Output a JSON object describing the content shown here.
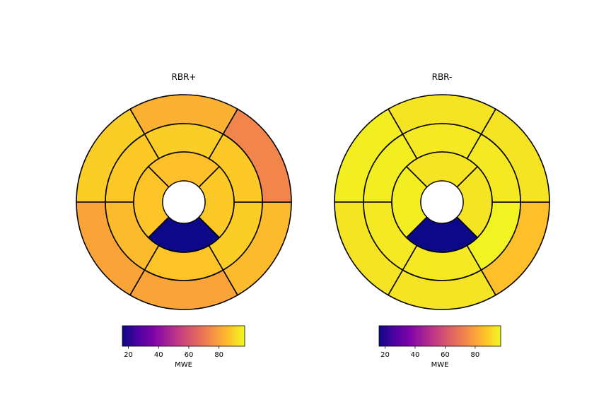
{
  "chart_data": [
    {
      "type": "bullseye",
      "title": "RBR+",
      "colorbar_label": "MWE",
      "colorbar_ticks": [
        "20",
        "40",
        "60",
        "80"
      ],
      "colorbar_range": [
        16,
        97
      ],
      "colormap": "plasma",
      "segments": {
        "basal": [
          83,
          89,
          80,
          80,
          85,
          73
        ],
        "mid": [
          89,
          88,
          85,
          87,
          89,
          88
        ],
        "apical": [
          86,
          87,
          15,
          88
        ],
        "apex": null
      }
    },
    {
      "type": "bullseye",
      "title": "RBR-",
      "colorbar_label": "MWE",
      "colorbar_ticks": [
        "20",
        "40",
        "60",
        "80"
      ],
      "colorbar_range": [
        16,
        97
      ],
      "colormap": "plasma",
      "segments": {
        "basal": [
          93,
          95,
          93,
          93,
          86,
          93
        ],
        "mid": [
          94,
          95,
          94,
          94,
          96,
          94
        ],
        "apical": [
          93,
          95,
          15,
          93
        ],
        "apex": null
      }
    }
  ]
}
